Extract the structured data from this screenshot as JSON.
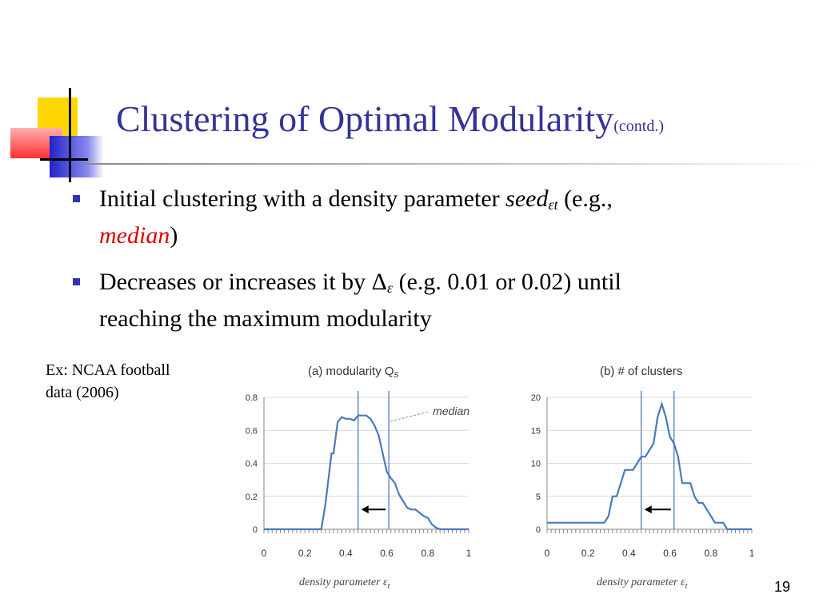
{
  "slide": {
    "title_main": "Clustering of Optimal Modularity",
    "title_sub": "(contd.)",
    "page_number": "19"
  },
  "bullets": [
    {
      "line1_a": "Initial clustering with a density parameter ",
      "line1_seed": "seed",
      "line1_sub": "εt",
      "line1_b": " (e.g.,",
      "line2_median": "median",
      "line2_b": ")"
    },
    {
      "line1_a": "Decreases or increases it by Δ",
      "line1_sub": "ε",
      "line1_b": " (e.g. 0.01 or 0.02) until",
      "line2": "reaching the maximum modularity"
    }
  ],
  "example_label": {
    "line1": "Ex: NCAA football",
    "line2": "data (2006)"
  },
  "colors": {
    "title": "#333399",
    "bullet": "#3333aa",
    "accent_red": "#e00000",
    "series": "#4a7ab8",
    "logo_yellow": "#ffd700",
    "logo_blue": "#3333cc",
    "logo_red": "#ff4040"
  },
  "chart_data": [
    {
      "type": "line",
      "title": "(a) modularity Q",
      "title_sub": "s",
      "xlabel": "density parameter ε",
      "xlabel_sub": "t",
      "xlim": [
        0,
        1
      ],
      "ylim": [
        0,
        0.8
      ],
      "xticks": [
        "0",
        "0.2",
        "0.4",
        "0.6",
        "0.8",
        "1"
      ],
      "yticks": [
        "0",
        "0.2",
        "0.4",
        "0.6",
        "0.8"
      ],
      "x": [
        0.0,
        0.28,
        0.3,
        0.33,
        0.34,
        0.36,
        0.38,
        0.4,
        0.42,
        0.44,
        0.46,
        0.48,
        0.5,
        0.52,
        0.54,
        0.56,
        0.58,
        0.6,
        0.62,
        0.64,
        0.66,
        0.68,
        0.7,
        0.72,
        0.74,
        0.76,
        0.78,
        0.8,
        0.82,
        0.84,
        0.86,
        1.0
      ],
      "y": [
        0.0,
        0.0,
        0.15,
        0.46,
        0.46,
        0.65,
        0.68,
        0.67,
        0.67,
        0.66,
        0.69,
        0.69,
        0.69,
        0.67,
        0.63,
        0.57,
        0.46,
        0.35,
        0.31,
        0.28,
        0.21,
        0.17,
        0.13,
        0.12,
        0.12,
        0.1,
        0.08,
        0.07,
        0.03,
        0.01,
        0.0,
        0.0
      ],
      "vlines": [
        0.46,
        0.61
      ],
      "arrow": {
        "from": 0.61,
        "to": 0.46,
        "y": 0.12
      },
      "annotation": "median"
    },
    {
      "type": "line",
      "title": "(b) # of clusters",
      "xlabel": "density parameter ε",
      "xlabel_sub": "t",
      "xlim": [
        0,
        1
      ],
      "ylim": [
        0,
        20
      ],
      "xticks": [
        "0",
        "0.2",
        "0.4",
        "0.6",
        "0.8",
        "1"
      ],
      "yticks": [
        "0",
        "5",
        "10",
        "15",
        "20"
      ],
      "x": [
        0.0,
        0.28,
        0.3,
        0.32,
        0.34,
        0.36,
        0.38,
        0.4,
        0.42,
        0.44,
        0.46,
        0.48,
        0.5,
        0.52,
        0.54,
        0.56,
        0.58,
        0.6,
        0.62,
        0.64,
        0.66,
        0.68,
        0.7,
        0.72,
        0.74,
        0.76,
        0.78,
        0.8,
        0.82,
        0.84,
        0.86,
        0.88,
        0.9,
        1.0
      ],
      "y": [
        1,
        1,
        2,
        5,
        5,
        7,
        9,
        9,
        9,
        10,
        11,
        11,
        12,
        13,
        17,
        19,
        17,
        14,
        13,
        11,
        7,
        7,
        7,
        5,
        4,
        4,
        3,
        2,
        1,
        1,
        1,
        0,
        0,
        0
      ],
      "vlines": [
        0.46,
        0.62
      ],
      "arrow": {
        "from": 0.62,
        "to": 0.46,
        "y": 3
      }
    }
  ]
}
